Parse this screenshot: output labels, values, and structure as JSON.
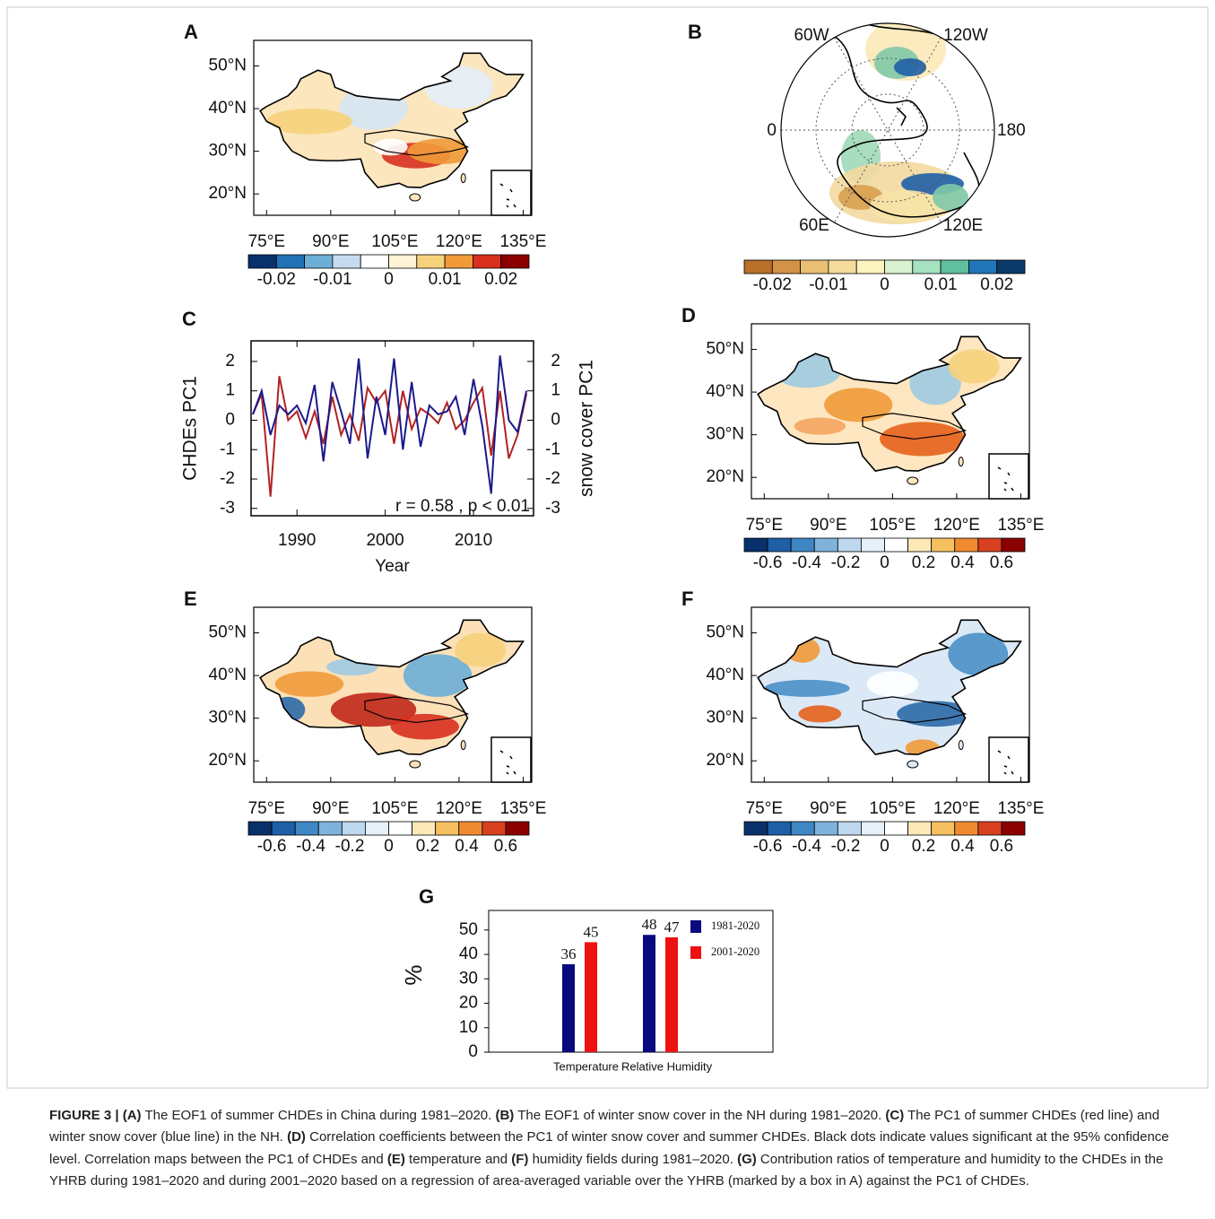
{
  "maps": [
    {
      "label": "A",
      "lat_labels": [
        "50°N",
        "40°N",
        "30°N",
        "20°N"
      ],
      "lon_labels": [
        "75°E",
        "90°E",
        "105°E",
        "120°E",
        "135°E"
      ],
      "colorbar": [
        "-0.02",
        "-0.01",
        "0",
        "0.01",
        "0.02"
      ]
    },
    {
      "label": "D",
      "lat_labels": [
        "50°N",
        "40°N",
        "30°N",
        "20°N"
      ],
      "lon_labels": [
        "75°E",
        "90°E",
        "105°E",
        "120°E",
        "135°E"
      ],
      "colorbar": [
        "-0.6",
        "-0.4",
        "-0.2",
        "0",
        "0.2",
        "0.4",
        "0.6"
      ]
    },
    {
      "label": "E",
      "lat_labels": [
        "50°N",
        "40°N",
        "30°N",
        "20°N"
      ],
      "lon_labels": [
        "75°E",
        "90°E",
        "105°E",
        "120°E",
        "135°E"
      ],
      "colorbar": [
        "-0.6",
        "-0.4",
        "-0.2",
        "0",
        "0.2",
        "0.4",
        "0.6"
      ]
    },
    {
      "label": "F",
      "lat_labels": [
        "50°N",
        "40°N",
        "30°N",
        "20°N"
      ],
      "lon_labels": [
        "75°E",
        "90°E",
        "105°E",
        "120°E",
        "135°E"
      ],
      "colorbar": [
        "-0.6",
        "-0.4",
        "-0.2",
        "0",
        "0.2",
        "0.4",
        "0.6"
      ]
    }
  ],
  "polar": {
    "label": "B",
    "lon_labels": [
      "60W",
      "120W",
      "0",
      "180",
      "60E",
      "120E"
    ],
    "colorbar": [
      "-0.02",
      "-0.01",
      "0",
      "0.01",
      "0.02"
    ]
  },
  "chart_data": [
    {
      "type": "line",
      "panel": "C",
      "xlabel": "Year",
      "ylabel": "CHDEs PC1",
      "y2label": "snow cover PC1",
      "annotation": "r = 0.58 , p < 0.01",
      "x": [
        1985,
        1986,
        1987,
        1988,
        1989,
        1990,
        1991,
        1992,
        1993,
        1994,
        1995,
        1996,
        1997,
        1998,
        1999,
        2000,
        2001,
        2002,
        2003,
        2004,
        2005,
        2006,
        2007,
        2008,
        2009,
        2010,
        2011,
        2012,
        2013,
        2014,
        2015,
        2016
      ],
      "series": [
        {
          "name": "CHDEs PC1",
          "color": "#b22222",
          "values": [
            0.2,
            0.9,
            -2.6,
            1.5,
            0,
            0.3,
            -0.6,
            0.3,
            -0.8,
            0.8,
            -0.5,
            0.2,
            -0.7,
            1.1,
            0.6,
            1.0,
            -0.8,
            1.0,
            -0.3,
            0.4,
            0.2,
            -0.1,
            0.6,
            -0.3,
            0,
            0.6,
            1.1,
            -1.2,
            1.0,
            -1.3,
            -0.5,
            0.9
          ]
        },
        {
          "name": "snow cover PC1",
          "color": "#1a1a8c",
          "axis": "y2",
          "values": [
            0.2,
            1.0,
            -0.5,
            0.5,
            0.2,
            0.5,
            -0.1,
            1.2,
            -1.4,
            1.3,
            0.3,
            -0.8,
            2.1,
            -1.3,
            0.8,
            -0.5,
            2.1,
            -1.0,
            1.3,
            -0.9,
            0.5,
            0.2,
            0.3,
            0.8,
            -0.5,
            1.4,
            -0.2,
            -2.5,
            2.2,
            0,
            -0.4,
            1.0
          ]
        }
      ],
      "xlim": [
        1984.8,
        2016.8
      ],
      "xticks": [
        1990,
        2000,
        2010
      ],
      "ylim": [
        -3.25,
        2.7
      ],
      "yticks": [
        -3,
        -2,
        -1,
        0,
        1,
        2
      ],
      "y2lim": [
        -3.25,
        2.7
      ],
      "y2ticks": [
        -3,
        -2,
        -1,
        0,
        1,
        2
      ]
    },
    {
      "type": "bar",
      "panel": "G",
      "ylabel": "%",
      "categories": [
        "Temperature",
        "Relative Humidity"
      ],
      "series": [
        {
          "name": "1981-2020",
          "color": "#0a0a80",
          "values": [
            36,
            48
          ]
        },
        {
          "name": "2001-2020",
          "color": "#ee1111",
          "values": [
            45,
            47
          ]
        }
      ],
      "ylim": [
        0,
        58
      ],
      "yticks": [
        0,
        10,
        20,
        30,
        40,
        50
      ]
    }
  ],
  "caption": [
    {
      "text": "FIGURE 3 | (A)",
      "bold": true
    },
    {
      "text": " The EOF1 of summer CHDEs in China during 1981–2020. ",
      "bold": false
    },
    {
      "text": "(B)",
      "bold": true
    },
    {
      "text": " The EOF1 of winter snow cover in the NH during 1981–2020. ",
      "bold": false
    },
    {
      "text": "(C)",
      "bold": true
    },
    {
      "text": " The PC1 of summer CHDEs (red line) and winter snow cover (blue line) in the NH. ",
      "bold": false
    },
    {
      "text": "(D)",
      "bold": true
    },
    {
      "text": " Correlation coefficients between the PC1 of winter snow cover and summer CHDEs. Black dots indicate values significant at the 95% confidence level. Correlation maps between the PC1 of CHDEs and ",
      "bold": false
    },
    {
      "text": "(E)",
      "bold": true
    },
    {
      "text": " temperature and ",
      "bold": false
    },
    {
      "text": "(F)",
      "bold": true
    },
    {
      "text": " humidity fields during 1981–2020. ",
      "bold": false
    },
    {
      "text": "(G)",
      "bold": true
    },
    {
      "text": " Contribution ratios of temperature and humidity to the CHDEs in the YHRB during 1981–2020 and during 2001–2020 based on a regression of area-averaged variable over the YHRB (marked by a box in A) against the PC1 of CHDEs.",
      "bold": false
    }
  ]
}
